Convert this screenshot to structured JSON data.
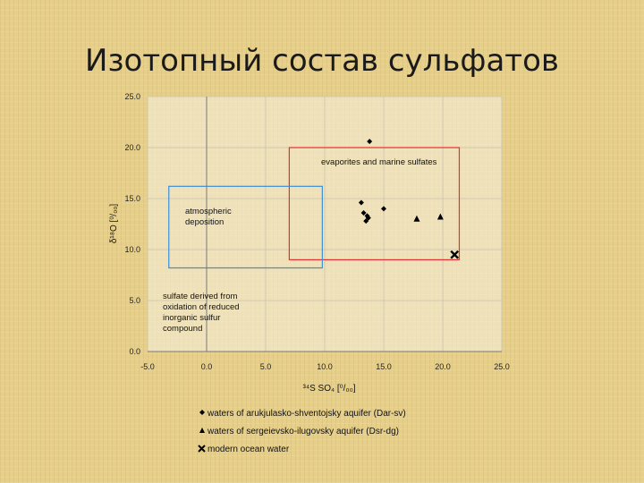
{
  "slide": {
    "title": "Изотопный состав сульфатов"
  },
  "chart_data": {
    "type": "scatter",
    "title": "",
    "xlabel": "³⁴S SO₄ [⁰/₀₀]",
    "ylabel": "δ¹⁸O [⁰/₀₀]",
    "xlim": [
      -5,
      25
    ],
    "ylim": [
      0,
      25
    ],
    "xticks": [
      "-5.0",
      "0.0",
      "5.0",
      "10.0",
      "15.0",
      "20.0",
      "25.0"
    ],
    "yticks": [
      "0.0",
      "5.0",
      "10.0",
      "15.0",
      "20.0",
      "25.0"
    ],
    "grid": true,
    "legend_position": "bottom",
    "series": [
      {
        "name": "waters of arukjulasko-shventojsky aquifer (Dar-sv)",
        "marker": "diamond",
        "color": "#000000",
        "points": [
          [
            13.8,
            20.6
          ],
          [
            13.1,
            14.6
          ],
          [
            13.3,
            13.6
          ],
          [
            13.6,
            13.3
          ],
          [
            13.5,
            12.8
          ],
          [
            13.7,
            13.1
          ],
          [
            15.0,
            14.0
          ]
        ]
      },
      {
        "name": "waters of sergeievsko-ilugovsky aquifer (Dsr-dg)",
        "marker": "triangle",
        "color": "#000000",
        "points": [
          [
            17.8,
            13.0
          ],
          [
            19.8,
            13.2
          ]
        ]
      },
      {
        "name": "modern ocean water",
        "marker": "cross",
        "color": "#000000",
        "points": [
          [
            21.0,
            9.5
          ]
        ]
      }
    ],
    "regions": [
      {
        "label": "evaporites and marine sulfates",
        "color": "#e53030",
        "x": [
          7.0,
          21.4
        ],
        "y": [
          9.0,
          20.0
        ]
      },
      {
        "label": "atmospheric deposition",
        "color": "#3a8fd8",
        "x": [
          -3.2,
          9.8
        ],
        "y": [
          8.2,
          16.2
        ]
      }
    ],
    "annotations": [
      {
        "lines": [
          "atmospheric",
          "deposition"
        ]
      },
      {
        "lines": [
          "evaporites and marine sulfates"
        ]
      },
      {
        "lines": [
          "sulfate derived from",
          "oxidation of reduced",
          "inorganic sulfur",
          "compound"
        ]
      }
    ]
  }
}
